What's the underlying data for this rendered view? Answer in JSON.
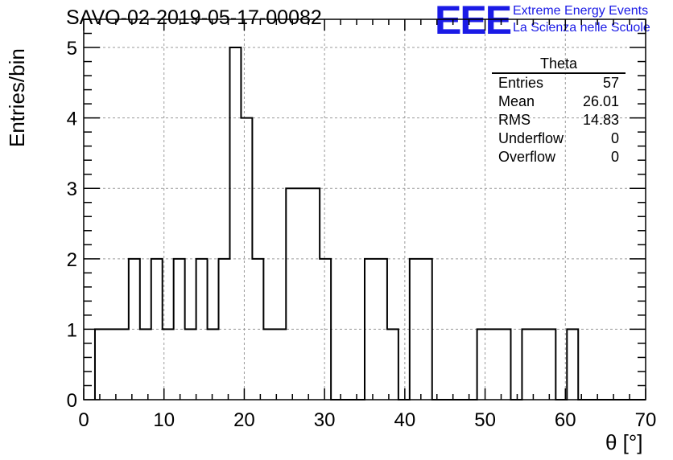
{
  "header": {
    "title": "SAVO-02-2019-05-17-00082",
    "logo": "EEE",
    "logo_line1": "Extreme Energy Events",
    "logo_line2": "La Scienza nelle Scuole"
  },
  "stats": {
    "title": "Theta",
    "rows": [
      {
        "label": "Entries",
        "value": "57"
      },
      {
        "label": "Mean",
        "value": "26.01"
      },
      {
        "label": "RMS",
        "value": "14.83"
      },
      {
        "label": "Underflow",
        "value": "0"
      },
      {
        "label": "Overflow",
        "value": "0"
      }
    ]
  },
  "chart_data": {
    "type": "bar",
    "title": "SAVO-02-2019-05-17-00082",
    "xlabel": "θ [°]",
    "ylabel": "Entries/bin",
    "xlim": [
      0,
      70
    ],
    "ylim": [
      0,
      5.4
    ],
    "grid": true,
    "bin_width": 1.4,
    "bins": [
      {
        "x": 1.4,
        "y": 1
      },
      {
        "x": 2.8,
        "y": 1
      },
      {
        "x": 4.2,
        "y": 1
      },
      {
        "x": 5.6,
        "y": 2
      },
      {
        "x": 7.0,
        "y": 1
      },
      {
        "x": 8.4,
        "y": 2
      },
      {
        "x": 9.8,
        "y": 1
      },
      {
        "x": 11.2,
        "y": 2
      },
      {
        "x": 12.6,
        "y": 1
      },
      {
        "x": 14.0,
        "y": 2
      },
      {
        "x": 15.4,
        "y": 1
      },
      {
        "x": 16.8,
        "y": 2
      },
      {
        "x": 18.2,
        "y": 5
      },
      {
        "x": 19.6,
        "y": 4
      },
      {
        "x": 21.0,
        "y": 2
      },
      {
        "x": 22.4,
        "y": 1
      },
      {
        "x": 23.8,
        "y": 1
      },
      {
        "x": 25.2,
        "y": 3
      },
      {
        "x": 26.6,
        "y": 3
      },
      {
        "x": 28.0,
        "y": 3
      },
      {
        "x": 29.4,
        "y": 2
      },
      {
        "x": 35.0,
        "y": 2
      },
      {
        "x": 36.4,
        "y": 2
      },
      {
        "x": 37.8,
        "y": 1
      },
      {
        "x": 40.6,
        "y": 2
      },
      {
        "x": 42.0,
        "y": 2
      },
      {
        "x": 49.0,
        "y": 1
      },
      {
        "x": 50.4,
        "y": 1
      },
      {
        "x": 51.8,
        "y": 1
      },
      {
        "x": 54.6,
        "y": 1
      },
      {
        "x": 56.0,
        "y": 1
      },
      {
        "x": 57.4,
        "y": 1
      },
      {
        "x": 60.2,
        "y": 1
      }
    ],
    "x_ticks": [
      "0",
      "10",
      "20",
      "30",
      "40",
      "50",
      "60",
      "70"
    ],
    "y_ticks": [
      "0",
      "1",
      "2",
      "3",
      "4",
      "5"
    ]
  }
}
